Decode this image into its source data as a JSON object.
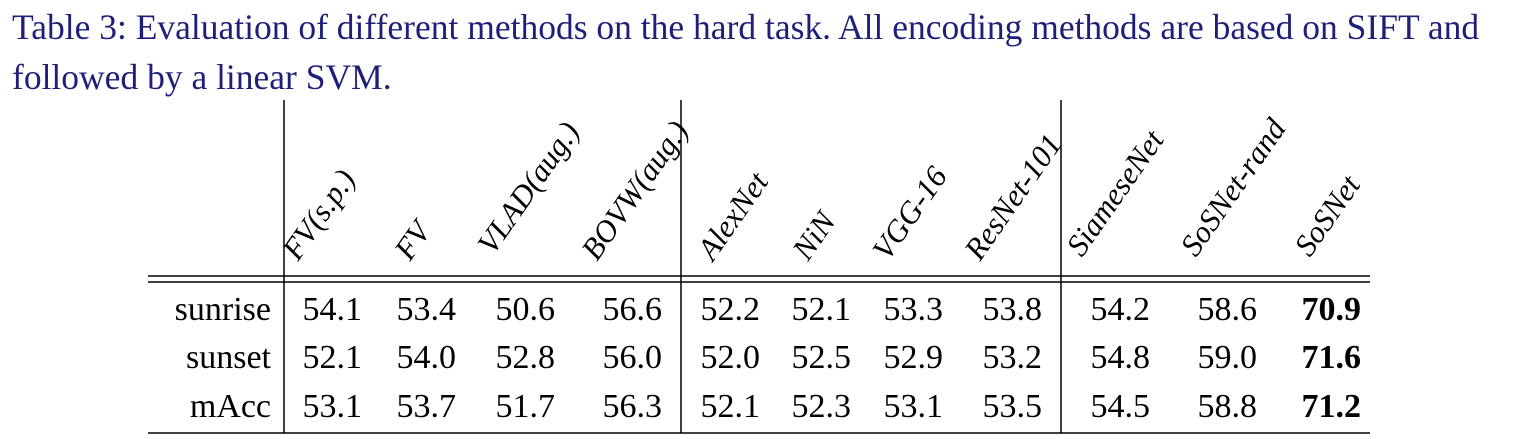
{
  "caption": "Table 3: Evaluation of different methods on the hard task. All encoding methods are based on SIFT and followed by a linear SVM.",
  "table": {
    "columns": [
      "FV(s.p.)",
      "FV",
      "VLAD(aug.)",
      "BOVW(aug.)",
      "AlexNet",
      "NiN",
      "VGG-16",
      "ResNet-101",
      "SiameseNet",
      "SoSNet-rand",
      "SoSNet"
    ],
    "column_groups": [
      [
        "FV(s.p.)",
        "FV",
        "VLAD(aug.)",
        "BOVW(aug.)"
      ],
      [
        "AlexNet",
        "NiN",
        "VGG-16",
        "ResNet-101"
      ],
      [
        "SiameseNet",
        "SoSNet-rand",
        "SoSNet"
      ]
    ],
    "rows": [
      {
        "label": "sunrise",
        "values": [
          "54.1",
          "53.4",
          "50.6",
          "56.6",
          "52.2",
          "52.1",
          "53.3",
          "53.8",
          "54.2",
          "58.6",
          "70.9"
        ],
        "best_index": 10
      },
      {
        "label": "sunset",
        "values": [
          "52.1",
          "54.0",
          "52.8",
          "56.0",
          "52.0",
          "52.5",
          "52.9",
          "53.2",
          "54.8",
          "59.0",
          "71.6"
        ],
        "best_index": 10
      },
      {
        "label": "mAcc",
        "values": [
          "53.1",
          "53.7",
          "51.7",
          "56.3",
          "52.1",
          "52.3",
          "53.1",
          "53.5",
          "54.5",
          "58.8",
          "71.2"
        ],
        "best_index": 10
      }
    ]
  },
  "colors": {
    "caption": "#1f1f7a",
    "table_text": "#000000"
  }
}
